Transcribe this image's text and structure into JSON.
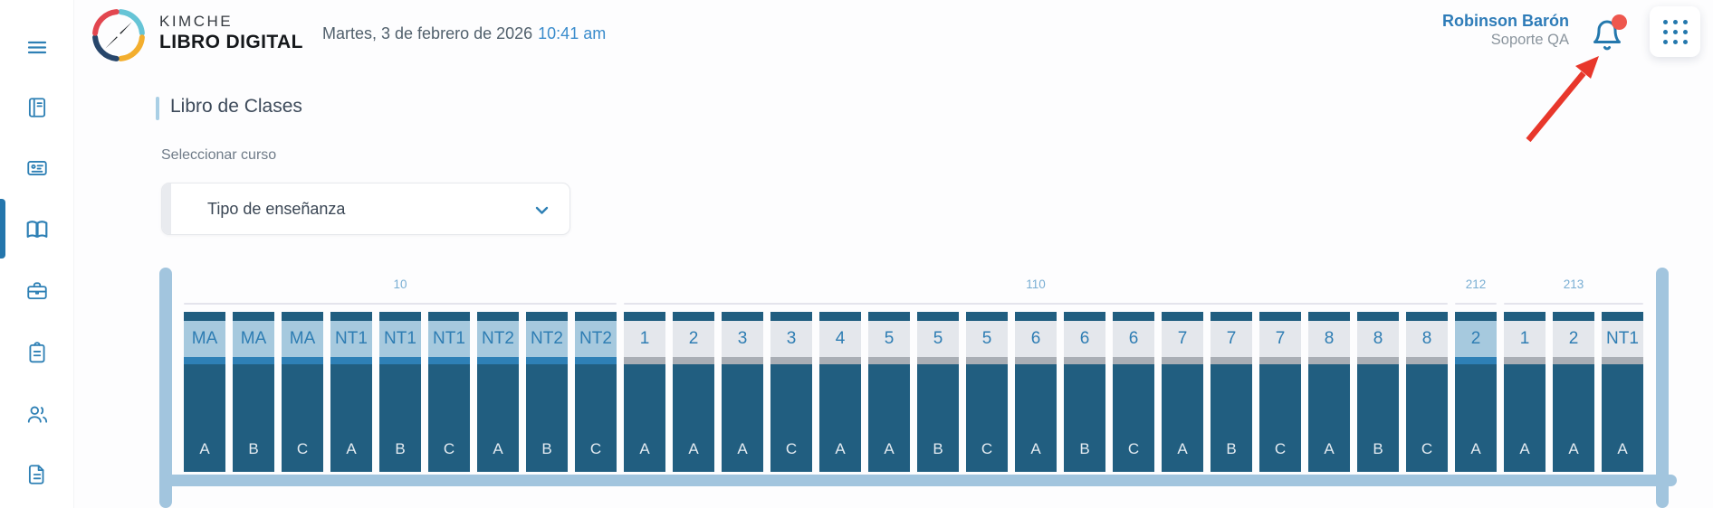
{
  "header": {
    "brand": {
      "line1": "KIMCHE",
      "line2": "LIBRO DIGITAL"
    },
    "date": "Martes, 3 de febrero de 2026",
    "time": "10:41 am",
    "user": {
      "name": "Robinson Barón",
      "role": "Soporte QA"
    },
    "notifications": {
      "has_unread_badge": true
    }
  },
  "main": {
    "title": "Libro de Clases",
    "select_label": "Seleccionar curso",
    "dropdown": {
      "value": "Tipo de enseñanza"
    }
  },
  "shelf": {
    "groups": [
      {
        "label": "10",
        "books": [
          {
            "grade": "MA",
            "section": "A",
            "variant": "blue"
          },
          {
            "grade": "MA",
            "section": "B",
            "variant": "blue"
          },
          {
            "grade": "MA",
            "section": "C",
            "variant": "blue"
          },
          {
            "grade": "NT1",
            "section": "A",
            "variant": "blue"
          },
          {
            "grade": "NT1",
            "section": "B",
            "variant": "blue"
          },
          {
            "grade": "NT1",
            "section": "C",
            "variant": "blue"
          },
          {
            "grade": "NT2",
            "section": "A",
            "variant": "blue"
          },
          {
            "grade": "NT2",
            "section": "B",
            "variant": "blue"
          },
          {
            "grade": "NT2",
            "section": "C",
            "variant": "blue"
          }
        ]
      },
      {
        "label": "110",
        "books": [
          {
            "grade": "1",
            "section": "A",
            "variant": "gray"
          },
          {
            "grade": "2",
            "section": "A",
            "variant": "gray"
          },
          {
            "grade": "3",
            "section": "A",
            "variant": "gray"
          },
          {
            "grade": "3",
            "section": "C",
            "variant": "gray"
          },
          {
            "grade": "4",
            "section": "A",
            "variant": "gray"
          },
          {
            "grade": "5",
            "section": "A",
            "variant": "gray"
          },
          {
            "grade": "5",
            "section": "B",
            "variant": "gray"
          },
          {
            "grade": "5",
            "section": "C",
            "variant": "gray"
          },
          {
            "grade": "6",
            "section": "A",
            "variant": "gray"
          },
          {
            "grade": "6",
            "section": "B",
            "variant": "gray"
          },
          {
            "grade": "6",
            "section": "C",
            "variant": "gray"
          },
          {
            "grade": "7",
            "section": "A",
            "variant": "gray"
          },
          {
            "grade": "7",
            "section": "B",
            "variant": "gray"
          },
          {
            "grade": "7",
            "section": "C",
            "variant": "gray"
          },
          {
            "grade": "8",
            "section": "A",
            "variant": "gray"
          },
          {
            "grade": "8",
            "section": "B",
            "variant": "gray"
          },
          {
            "grade": "8",
            "section": "C",
            "variant": "gray"
          }
        ]
      },
      {
        "label": "212",
        "books": [
          {
            "grade": "2",
            "section": "A",
            "variant": "blue"
          }
        ]
      },
      {
        "label": "213",
        "books": [
          {
            "grade": "1",
            "section": "A",
            "variant": "gray"
          },
          {
            "grade": "2",
            "section": "A",
            "variant": "gray"
          },
          {
            "grade": "NT1",
            "section": "A",
            "variant": "gray"
          }
        ]
      }
    ]
  },
  "icons": {
    "sidebar": [
      "menu-icon",
      "journal-icon",
      "id-card-icon",
      "open-book-icon",
      "briefcase-icon",
      "clipboard-icon",
      "users-icon",
      "document-icon"
    ],
    "header": [
      "compass-logo-icon",
      "bell-icon",
      "apps-grid-icon"
    ],
    "dropdown": "chevron-down-icon",
    "annotation": "red-arrow-annotation"
  },
  "colors": {
    "accent_blue": "#2e80b5",
    "link_blue": "#2e7cb8",
    "book_dark_blue": "#215e80",
    "book_light_blue_band": "#a6c9de",
    "book_mid_blue_strip": "#2e80b6",
    "book_gray_band": "#e4e7ec",
    "book_gray_strip": "#a9aeb5",
    "shelf_blue": "#a2c5de",
    "badge_red": "#ee574e",
    "arrow_red": "#e8372b",
    "logo_red": "#e2464f",
    "logo_cyan": "#66c4d6",
    "logo_yellow": "#f3ae2e",
    "logo_navy": "#27466b"
  }
}
